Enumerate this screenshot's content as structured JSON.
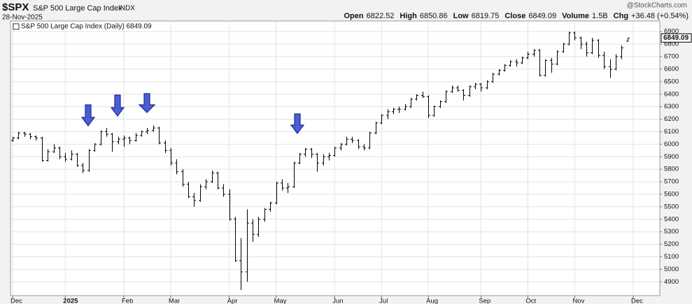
{
  "chart_data": {
    "type": "ohlc",
    "title": "$SPX",
    "subtitle": "S&P 500 Large Cap Index",
    "exchange": "INDX",
    "date": "28-Nov-2025",
    "quote": [
      {
        "label": "Open",
        "value": 6822.52
      },
      {
        "label": "High",
        "value": 6850.86
      },
      {
        "label": "Low",
        "value": 6819.75
      },
      {
        "label": "Close",
        "value": 6849.09
      },
      {
        "label": "Volume",
        "value": "1.5B"
      },
      {
        "label": "Chg",
        "value": "+36.48 (+0.54%)"
      }
    ],
    "watermark": "@StockCharts.com",
    "legend": "S&P 500 Large Cap Index (Daily) 6849.09",
    "last_label": "6849.09",
    "color": "#000000",
    "grid": true,
    "categories": [
      "Dec",
      null,
      null,
      null,
      null,
      null,
      null,
      null,
      null,
      "2025",
      null,
      null,
      null,
      null,
      null,
      null,
      null,
      null,
      null,
      "Feb",
      null,
      null,
      null,
      null,
      null,
      null,
      null,
      "Mar",
      null,
      null,
      null,
      null,
      null,
      null,
      null,
      null,
      null,
      "Apr",
      null,
      null,
      null,
      null,
      null,
      null,
      null,
      "May",
      null,
      null,
      null,
      null,
      null,
      null,
      null,
      null,
      null,
      "Jun",
      null,
      null,
      null,
      null,
      null,
      null,
      null,
      "Jul",
      null,
      null,
      null,
      null,
      null,
      null,
      null,
      "Aug",
      null,
      null,
      null,
      null,
      null,
      null,
      null,
      null,
      "Sep",
      null,
      null,
      null,
      null,
      null,
      null,
      null,
      "Oct",
      null,
      null,
      null,
      null,
      null,
      null,
      null,
      "Nov",
      null,
      null,
      null,
      null,
      null,
      null,
      null,
      null,
      null,
      "Dec"
    ],
    "open": [
      6030,
      6050,
      6090,
      6080,
      6060,
      6050,
      5870,
      5940,
      5970,
      5900,
      5880,
      5920,
      5830,
      5790,
      5950,
      6000,
      6100,
      6080,
      6020,
      6040,
      6050,
      6030,
      6070,
      6100,
      6110,
      6130,
      6010,
      5950,
      5850,
      5780,
      5680,
      5580,
      5550,
      5660,
      5700,
      5770,
      5650,
      5600,
      5400,
      5070,
      4980,
      5370,
      5280,
      5400,
      5480,
      5530,
      5690,
      5650,
      5660,
      5850,
      5920,
      5960,
      5920,
      5850,
      5900,
      5910,
      5970,
      6000,
      6040,
      6030,
      5980,
      5970,
      6090,
      6170,
      6230,
      6260,
      6280,
      6280,
      6300,
      6360,
      6390,
      6380,
      6230,
      6300,
      6340,
      6420,
      6450,
      6430,
      6390,
      6460,
      6480,
      6450,
      6500,
      6560,
      6590,
      6630,
      6660,
      6650,
      6690,
      6720,
      6750,
      6550,
      6670,
      6640,
      6740,
      6800,
      6890,
      6850,
      6800,
      6730,
      6830,
      6710,
      6620,
      6600,
      6700,
      6822.52,
      null
    ],
    "high": [
      6060,
      6100,
      6100,
      6090,
      6070,
      6060,
      5960,
      6000,
      5980,
      5930,
      5950,
      5930,
      5850,
      5960,
      6010,
      6110,
      6130,
      6090,
      6060,
      6070,
      6060,
      6090,
      6110,
      6130,
      6150,
      6140,
      6030,
      5970,
      5880,
      5800,
      5700,
      5610,
      5680,
      5720,
      5790,
      5780,
      5680,
      5640,
      5420,
      5250,
      5480,
      5400,
      5420,
      5490,
      5540,
      5700,
      5720,
      5690,
      5860,
      5930,
      5970,
      5970,
      5930,
      5920,
      5930,
      5980,
      6010,
      6060,
      6060,
      6040,
      6000,
      6100,
      6180,
      6240,
      6280,
      6290,
      6300,
      6320,
      6370,
      6400,
      6420,
      6390,
      6310,
      6350,
      6430,
      6470,
      6470,
      6440,
      6470,
      6490,
      6490,
      6510,
      6570,
      6600,
      6640,
      6670,
      6680,
      6700,
      6740,
      6760,
      6760,
      6680,
      6690,
      6750,
      6810,
      6900,
      6900,
      6860,
      6820,
      6850,
      6840,
      6740,
      6680,
      6720,
      6790,
      6850.86,
      null
    ],
    "low": [
      6020,
      6040,
      6060,
      6040,
      6030,
      5860,
      5860,
      5930,
      5880,
      5860,
      5870,
      5820,
      5770,
      5780,
      5940,
      5990,
      6060,
      5940,
      6000,
      5980,
      6000,
      6020,
      6060,
      6080,
      6100,
      6000,
      5930,
      5830,
      5760,
      5660,
      5570,
      5500,
      5540,
      5640,
      5690,
      5640,
      5580,
      5390,
      5060,
      4835,
      4900,
      5220,
      5260,
      5380,
      5460,
      5520,
      5630,
      5610,
      5650,
      5840,
      5900,
      5890,
      5780,
      5830,
      5870,
      5900,
      5950,
      5990,
      6010,
      5960,
      5950,
      5960,
      6080,
      6160,
      6200,
      6240,
      6250,
      6270,
      6290,
      6350,
      6370,
      6210,
      6220,
      6290,
      6330,
      6410,
      6420,
      6350,
      6380,
      6440,
      6420,
      6440,
      6490,
      6550,
      6580,
      6620,
      6620,
      6640,
      6680,
      6700,
      6540,
      6540,
      6570,
      6630,
      6730,
      6790,
      6830,
      6760,
      6700,
      6720,
      6690,
      6600,
      6530,
      6590,
      6680,
      6819.75,
      null
    ],
    "close": [
      6050,
      6090,
      6080,
      6060,
      6050,
      5870,
      5940,
      5970,
      5900,
      5880,
      5920,
      5830,
      5790,
      5950,
      6000,
      6100,
      6080,
      6020,
      6040,
      6050,
      6030,
      6070,
      6100,
      6110,
      6130,
      6010,
      5950,
      5850,
      5780,
      5680,
      5580,
      5550,
      5660,
      5700,
      5770,
      5650,
      5600,
      5400,
      5070,
      4980,
      5370,
      5280,
      5400,
      5480,
      5530,
      5690,
      5650,
      5660,
      5850,
      5920,
      5960,
      5920,
      5850,
      5900,
      5910,
      5970,
      6000,
      6040,
      6030,
      5980,
      5970,
      6090,
      6170,
      6230,
      6260,
      6280,
      6280,
      6300,
      6360,
      6390,
      6380,
      6230,
      6300,
      6340,
      6420,
      6450,
      6430,
      6390,
      6460,
      6480,
      6450,
      6500,
      6560,
      6590,
      6630,
      6660,
      6650,
      6690,
      6720,
      6750,
      6550,
      6670,
      6640,
      6740,
      6800,
      6890,
      6850,
      6800,
      6730,
      6830,
      6710,
      6620,
      6600,
      6700,
      6770,
      6849.09,
      null
    ],
    "ylim": [
      4790,
      6985
    ],
    "yticks": [
      4900,
      5000,
      5100,
      5200,
      5300,
      5400,
      5500,
      5600,
      5700,
      5800,
      5900,
      6000,
      6100,
      6200,
      6300,
      6400,
      6500,
      6600,
      6700,
      6800,
      6900
    ]
  }
}
